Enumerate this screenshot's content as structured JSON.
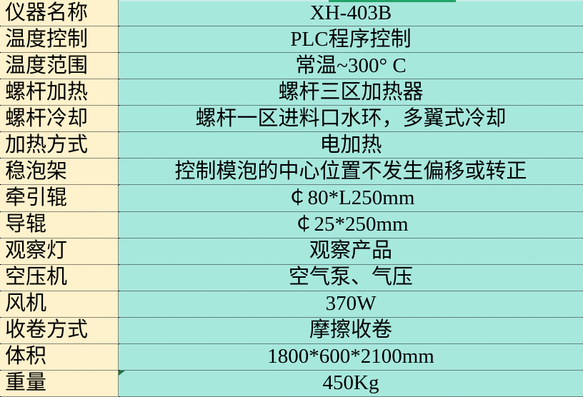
{
  "table": {
    "rows": [
      {
        "label": "仪器名称",
        "value": "XH-403B"
      },
      {
        "label": "温度控制",
        "value": "PLC程序控制"
      },
      {
        "label": "温度范围",
        "value": "常温~300° C"
      },
      {
        "label": "螺杆加热",
        "value": "螺杆三区加热器"
      },
      {
        "label": "螺杆冷却",
        "value": "螺杆一区进料口水环，多翼式冷却"
      },
      {
        "label": "加热方式",
        "value": "电加热"
      },
      {
        "label": "稳泡架",
        "value": "控制模泡的中心位置不发生偏移或转正"
      },
      {
        "label": "牵引辊",
        "value": "￠80*L250mm"
      },
      {
        "label": "导辊",
        "value": "￠25*250mm"
      },
      {
        "label": "观察灯",
        "value": "观察产品"
      },
      {
        "label": "空压机",
        "value": "空气泵、气压"
      },
      {
        "label": "风机",
        "value": "370W"
      },
      {
        "label": "收卷方式",
        "value": "摩擦收卷"
      },
      {
        "label": "体积",
        "value": "1800*600*2100mm"
      },
      {
        "label": "重量",
        "value": "450Kg",
        "error_indicator": true
      }
    ]
  },
  "colors": {
    "label_bg": "#FDF2CC",
    "value_bg": "#A7E8DD",
    "border": "#1A1A1A",
    "selection_green": "#21A366",
    "error_indicator_green": "#1E7145",
    "top_strip": "#C7EDE8",
    "text": "#000000"
  }
}
